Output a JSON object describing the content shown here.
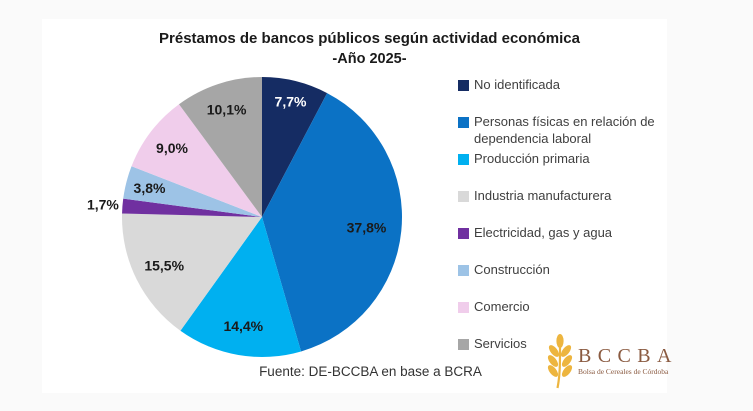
{
  "page": {
    "background_color": "#fafafa",
    "card_color": "#ffffff"
  },
  "title": {
    "line1": "Préstamos de bancos públicos según actividad económica",
    "line2": "-Año 2025-"
  },
  "source_note": "Fuente: DE-BCCBA en base a BCRA",
  "logo": {
    "acronym": "BCCBA",
    "tagline": "Bolsa de Cereales de Córdoba",
    "text_color": "#8a5a40",
    "wheat_color": "#edb53f"
  },
  "chart_data": {
    "type": "pie",
    "title": "Préstamos de bancos públicos según actividad económica -Año 2025-",
    "unit": "%",
    "start_angle_deg": 0,
    "direction": "clockwise",
    "legend_position": "right",
    "grid": false,
    "slices": [
      {
        "label": "No identificada",
        "value": 7.7,
        "display": "7,7%",
        "color": "#152c63",
        "label_color": "#ffffff",
        "label_inside": true,
        "label_r": 0.85
      },
      {
        "label": "Personas físicas en relación de dependencia laboral",
        "value": 37.8,
        "display": "37,8%",
        "color": "#0b72c5",
        "label_color": "#1a1a1a",
        "label_inside": true,
        "label_r": 0.75
      },
      {
        "label": "Producción primaria",
        "value": 14.4,
        "display": "14,4%",
        "color": "#00b0f0",
        "label_color": "#1a1a1a",
        "label_inside": true,
        "label_r": 0.79
      },
      {
        "label": "Industria manufacturera",
        "value": 15.5,
        "display": "15,5%",
        "color": "#d9d9d9",
        "label_color": "#1a1a1a",
        "label_inside": true,
        "label_r": 0.78
      },
      {
        "label": "Electricidad, gas y agua",
        "value": 1.7,
        "display": "1,7%",
        "color": "#7030a0",
        "label_color": "#1a1a1a",
        "label_inside": false,
        "label_r": 1.14
      },
      {
        "label": "Construcción",
        "value": 3.8,
        "display": "3,8%",
        "color": "#9dc3e6",
        "label_color": "#1a1a1a",
        "label_inside": true,
        "label_r": 0.83
      },
      {
        "label": "Comercio",
        "value": 9.0,
        "display": "9,0%",
        "color": "#f0cdeb",
        "label_color": "#1a1a1a",
        "label_inside": true,
        "label_r": 0.81
      },
      {
        "label": "Servicios",
        "value": 10.1,
        "display": "10,1%",
        "color": "#a6a6a6",
        "label_color": "#1a1a1a",
        "label_inside": true,
        "label_r": 0.81
      }
    ]
  }
}
